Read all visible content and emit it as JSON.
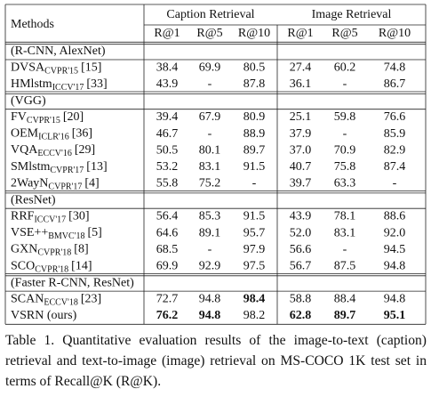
{
  "table": {
    "header": {
      "methods": "Methods",
      "groups": [
        "Caption Retrieval",
        "Image Retrieval"
      ],
      "metrics": [
        "R@1",
        "R@5",
        "R@10",
        "R@1",
        "R@5",
        "R@10"
      ]
    },
    "sections": [
      {
        "title": "(R-CNN, AlexNet)",
        "rows": [
          {
            "name": "DVSA",
            "venue": "CVPR'15",
            "ref": "[15]",
            "cells": [
              "38.4",
              "69.9",
              "80.5",
              "27.4",
              "60.2",
              "74.8"
            ],
            "bold": []
          },
          {
            "name": "HMlstm",
            "venue": "ICCV'17",
            "ref": "[33]",
            "cells": [
              "43.9",
              "-",
              "87.8",
              "36.1",
              "-",
              "86.7"
            ],
            "bold": []
          }
        ]
      },
      {
        "title": "(VGG)",
        "rows": [
          {
            "name": "FV",
            "venue": "CVPR'15",
            "ref": "[20]",
            "cells": [
              "39.4",
              "67.9",
              "80.9",
              "25.1",
              "59.8",
              "76.6"
            ],
            "bold": []
          },
          {
            "name": "OEM",
            "venue": "ICLR'16",
            "ref": "[36]",
            "cells": [
              "46.7",
              "-",
              "88.9",
              "37.9",
              "-",
              "85.9"
            ],
            "bold": []
          },
          {
            "name": "VQA",
            "venue": "ECCV'16",
            "ref": "[29]",
            "cells": [
              "50.5",
              "80.1",
              "89.7",
              "37.0",
              "70.9",
              "82.9"
            ],
            "bold": []
          },
          {
            "name": "SMlstm",
            "venue": "CVPR'17",
            "ref": "[13]",
            "cells": [
              "53.2",
              "83.1",
              "91.5",
              "40.7",
              "75.8",
              "87.4"
            ],
            "bold": []
          },
          {
            "name": "2WayN",
            "venue": "CVPR'17",
            "ref": "[4]",
            "cells": [
              "55.8",
              "75.2",
              "-",
              "39.7",
              "63.3",
              "-"
            ],
            "bold": []
          }
        ]
      },
      {
        "title": "(ResNet)",
        "rows": [
          {
            "name": "RRF",
            "venue": "ICCV'17",
            "ref": "[30]",
            "cells": [
              "56.4",
              "85.3",
              "91.5",
              "43.9",
              "78.1",
              "88.6"
            ],
            "bold": []
          },
          {
            "name": "VSE++",
            "venue": "BMVC'18",
            "ref": "[5]",
            "cells": [
              "64.6",
              "89.1",
              "95.7",
              "52.0",
              "83.1",
              "92.0"
            ],
            "bold": []
          },
          {
            "name": "GXN",
            "venue": "CVPR'18",
            "ref": "[8]",
            "cells": [
              "68.5",
              "-",
              "97.9",
              "56.6",
              "-",
              "94.5"
            ],
            "bold": []
          },
          {
            "name": "SCO",
            "venue": "CVPR'18",
            "ref": "[14]",
            "cells": [
              "69.9",
              "92.9",
              "97.5",
              "56.7",
              "87.5",
              "94.8"
            ],
            "bold": []
          }
        ]
      },
      {
        "title": "(Faster R-CNN, ResNet)",
        "rows": [
          {
            "name": "SCAN",
            "venue": "ECCV'18",
            "ref": "[23]",
            "cells": [
              "72.7",
              "94.8",
              "98.4",
              "58.8",
              "88.4",
              "94.8"
            ],
            "bold": [
              2
            ]
          },
          {
            "name": "VSRN (ours)",
            "cells": [
              "76.2",
              "94.8",
              "98.2",
              "62.8",
              "89.7",
              "95.1"
            ],
            "bold": [
              0,
              1,
              3,
              4,
              5
            ]
          }
        ]
      }
    ],
    "caption": "Table 1. Quantitative evaluation results of the image-to-text (caption) retrieval and text-to-image (image) retrieval on MS-COCO 1K test set in terms of Recall@K (R@K)."
  }
}
